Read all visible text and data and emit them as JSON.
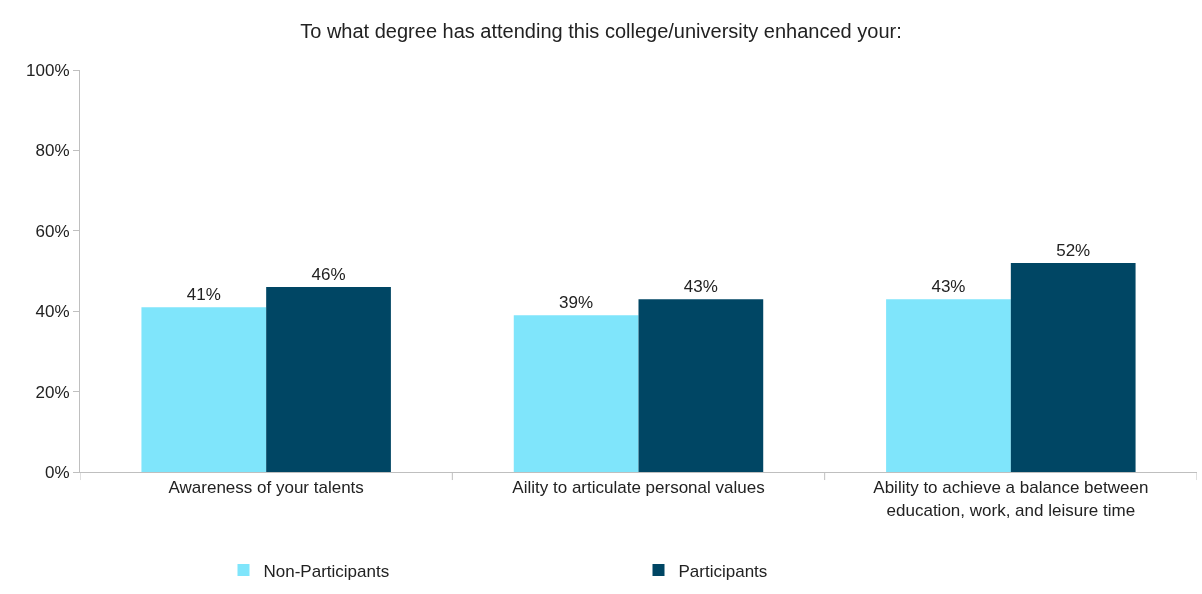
{
  "chart_data": {
    "type": "bar",
    "title": "To what degree has attending this college/university enhanced your:",
    "categories": [
      "Awareness of your talents",
      "Aility to articulate personal values",
      "Ability to achieve a balance between education, work, and leisure time"
    ],
    "series": [
      {
        "name": "Non-Participants",
        "color": "#7fe5fb",
        "values": [
          41,
          39,
          43
        ],
        "value_labels": [
          "41%",
          "39%",
          "43%"
        ]
      },
      {
        "name": "Participants",
        "color": "#004664",
        "values": [
          46,
          43,
          52
        ],
        "value_labels": [
          "46%",
          "43%",
          "52%"
        ]
      }
    ],
    "ylim": [
      0,
      100
    ],
    "yticks": [
      {
        "value": 0,
        "label": "0%"
      },
      {
        "value": 20,
        "label": "20%"
      },
      {
        "value": 40,
        "label": "40%"
      },
      {
        "value": 60,
        "label": "60%"
      },
      {
        "value": 80,
        "label": "80%"
      },
      {
        "value": 100,
        "label": "100%"
      }
    ],
    "legend": "bottom"
  }
}
